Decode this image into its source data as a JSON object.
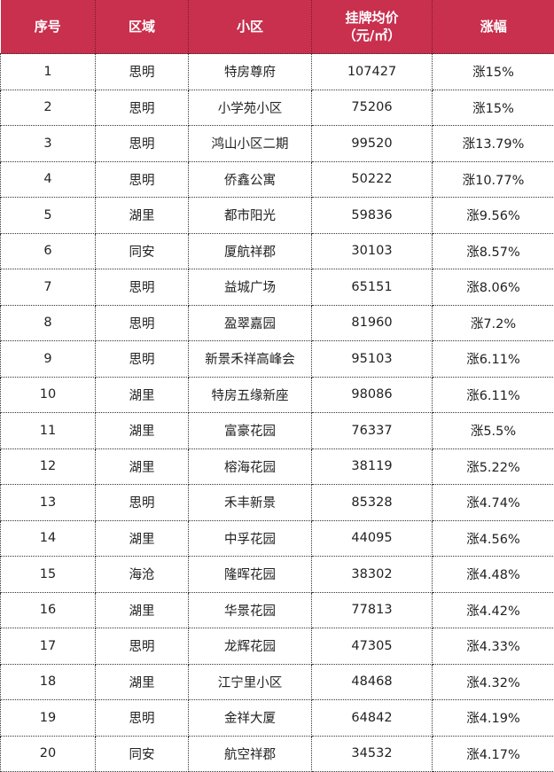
{
  "header": {
    "rank": "序号",
    "district": "区域",
    "community": "小区",
    "price_line1": "挂牌均价",
    "price_line2": "（元/㎡）",
    "change": "涨幅"
  },
  "header_color": "#c8304e",
  "rows": [
    [
      "1",
      "思明",
      "特房尊府",
      "107427",
      "涨15%"
    ],
    [
      "2",
      "思明",
      "小学苑小区",
      "75206",
      "涨15%"
    ],
    [
      "3",
      "思明",
      "鸿山小区二期",
      "99520",
      "涨13.79%"
    ],
    [
      "4",
      "思明",
      "侨鑫公寓",
      "50222",
      "涨10.77%"
    ],
    [
      "5",
      "湖里",
      "都市阳光",
      "59836",
      "涨9.56%"
    ],
    [
      "6",
      "同安",
      "厦航祥郡",
      "30103",
      "涨8.57%"
    ],
    [
      "7",
      "思明",
      "益城广场",
      "65151",
      "涨8.06%"
    ],
    [
      "8",
      "思明",
      "盈翠嘉园",
      "81960",
      "涨7.2%"
    ],
    [
      "9",
      "思明",
      "新景禾祥高峰会",
      "95103",
      "涨6.11%"
    ],
    [
      "10",
      "湖里",
      "特房五缘新座",
      "98086",
      "涨6.11%"
    ],
    [
      "11",
      "湖里",
      "富豪花园",
      "76337",
      "涨5.5%"
    ],
    [
      "12",
      "湖里",
      "榕海花园",
      "38119",
      "涨5.22%"
    ],
    [
      "13",
      "思明",
      "禾丰新景",
      "85328",
      "涨4.74%"
    ],
    [
      "14",
      "湖里",
      "中孚花园",
      "44095",
      "涨4.56%"
    ],
    [
      "15",
      "海沧",
      "隆晖花园",
      "38302",
      "涨4.48%"
    ],
    [
      "16",
      "湖里",
      "华景花园",
      "77813",
      "涨4.42%"
    ],
    [
      "17",
      "思明",
      "龙辉花园",
      "47305",
      "涨4.33%"
    ],
    [
      "18",
      "湖里",
      "江宁里小区",
      "48468",
      "涨4.32%"
    ],
    [
      "19",
      "思明",
      "金祥大厦",
      "64842",
      "涨4.19%"
    ],
    [
      "20",
      "同安",
      "航空祥郡",
      "34532",
      "涨4.17%"
    ]
  ]
}
